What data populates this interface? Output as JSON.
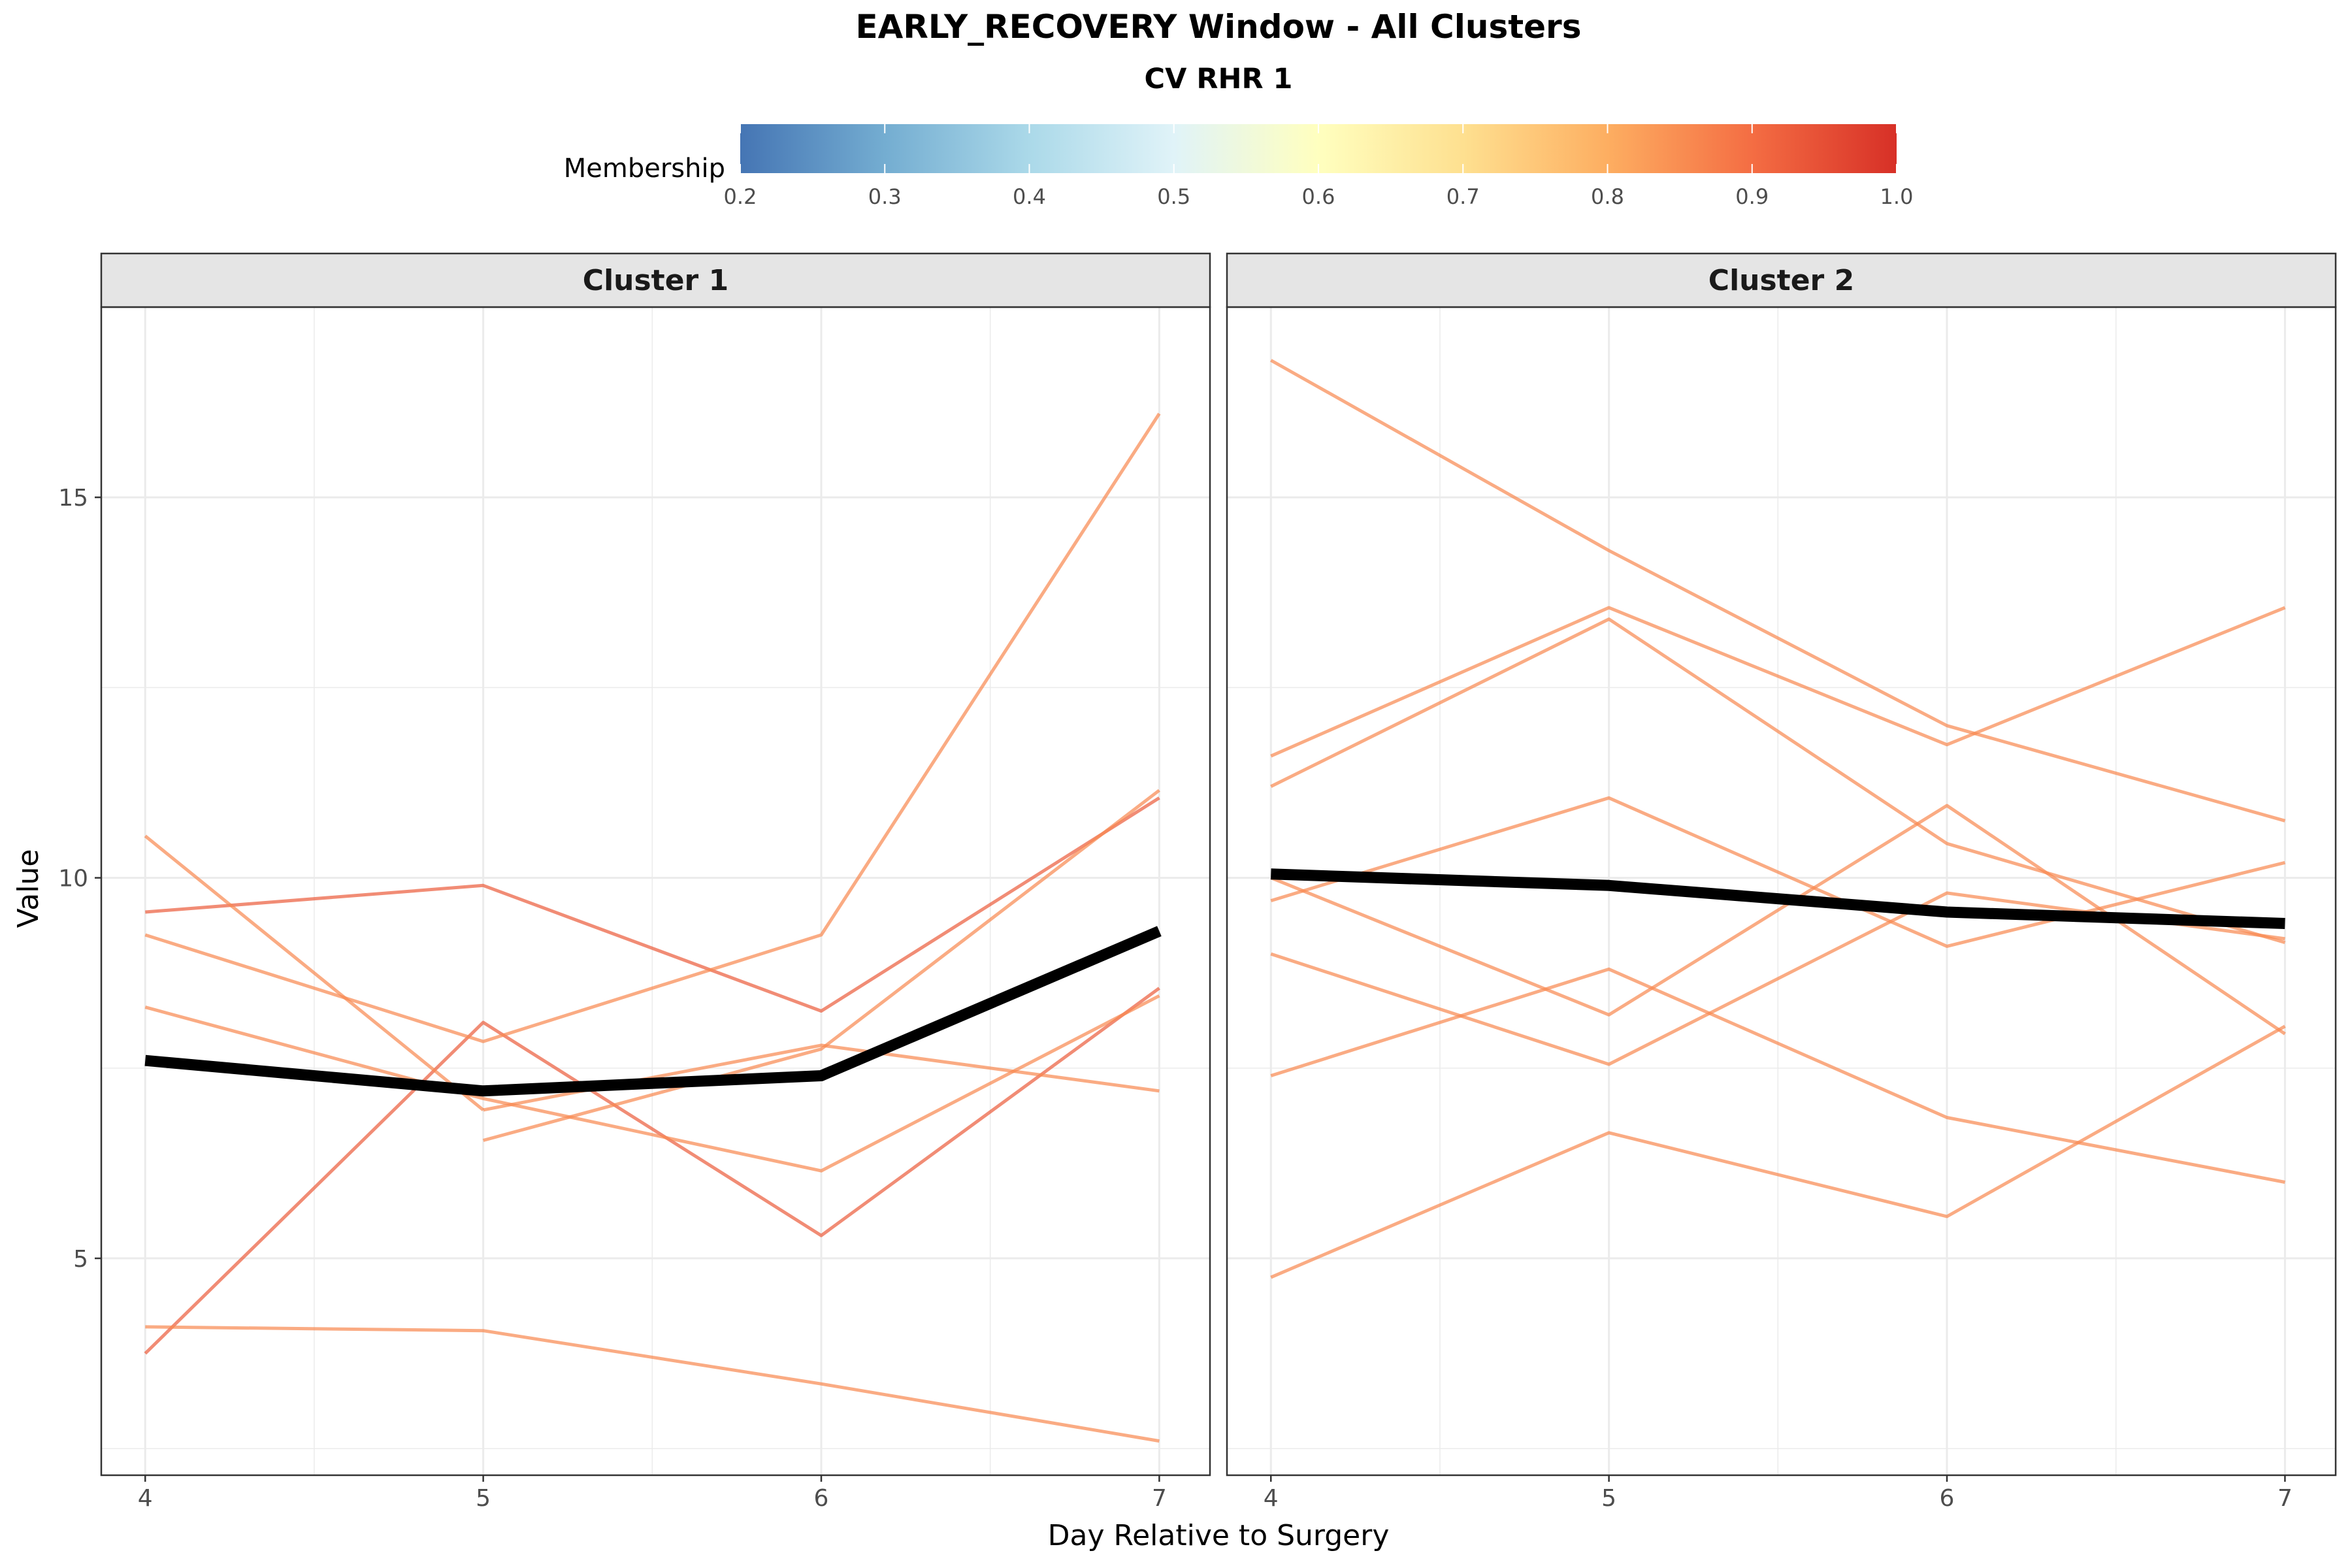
{
  "chart_data": {
    "type": "line",
    "title": "EARLY_RECOVERY Window - All Clusters",
    "subtitle": "CV RHR 1",
    "xlabel": "Day Relative to Surgery",
    "ylabel": "Value",
    "x": [
      4,
      5,
      6,
      7
    ],
    "xlim": [
      3.87,
      7.15
    ],
    "ylim": [
      2.15,
      17.5
    ],
    "y_ticks": [
      5,
      10,
      15
    ],
    "grid": true,
    "legend": {
      "title": "Membership",
      "placement": "top",
      "ticks": [
        0.2,
        0.3,
        0.4,
        0.5,
        0.6,
        0.7,
        0.8,
        0.9,
        1.0
      ],
      "tick_labels": [
        "0.2",
        "0.3",
        "0.4",
        "0.5",
        "0.6",
        "0.7",
        "0.8",
        "0.9",
        "1.0"
      ],
      "range": [
        0.2,
        1.0
      ],
      "stops": [
        {
          "value": 0.2,
          "color": "#4575b4"
        },
        {
          "value": 0.3,
          "color": "#74add1"
        },
        {
          "value": 0.4,
          "color": "#abd9e9"
        },
        {
          "value": 0.5,
          "color": "#e0f3f8"
        },
        {
          "value": 0.6,
          "color": "#ffffbf"
        },
        {
          "value": 0.7,
          "color": "#fee090"
        },
        {
          "value": 0.8,
          "color": "#fdae61"
        },
        {
          "value": 0.9,
          "color": "#f46d43"
        },
        {
          "value": 1.0,
          "color": "#d73027"
        }
      ]
    },
    "mean_line_color": "#000000",
    "panels": [
      {
        "label": "Cluster 1",
        "lines": [
          {
            "x": [
              4,
              5,
              6,
              7
            ],
            "y": [
              9.55,
              9.9,
              8.25,
              11.05
            ],
            "membership": 0.93
          },
          {
            "x": [
              4,
              5,
              6,
              7
            ],
            "y": [
              3.75,
              8.1,
              5.3,
              8.55
            ],
            "membership": 0.93
          },
          {
            "x": [
              4,
              5
            ],
            "y": [
              10.55,
              6.95
            ],
            "membership": 0.86
          },
          {
            "x": [
              5,
              6,
              7
            ],
            "y": [
              6.95,
              7.8,
              7.2
            ],
            "membership": 0.86
          },
          {
            "x": [
              4,
              5,
              6,
              7
            ],
            "y": [
              9.25,
              7.85,
              9.25,
              16.1
            ],
            "membership": 0.86
          },
          {
            "x": [
              4,
              5,
              6,
              7
            ],
            "y": [
              8.3,
              7.1,
              6.15,
              8.45
            ],
            "membership": 0.86
          },
          {
            "x": [
              5,
              6,
              7
            ],
            "y": [
              6.55,
              7.75,
              11.15
            ],
            "membership": 0.86
          },
          {
            "x": [
              4,
              5,
              6,
              7
            ],
            "y": [
              4.1,
              4.05,
              3.35,
              2.6
            ],
            "membership": 0.86
          }
        ],
        "mean": {
          "x": [
            4,
            5,
            6,
            7
          ],
          "y": [
            7.6,
            7.2,
            7.4,
            9.3
          ]
        }
      },
      {
        "label": "Cluster 2",
        "lines": [
          {
            "x": [
              4,
              5,
              6,
              7
            ],
            "y": [
              16.8,
              14.3,
              12.0,
              10.75
            ],
            "membership": 0.86
          },
          {
            "x": [
              4,
              5,
              6,
              7
            ],
            "y": [
              11.6,
              13.55,
              11.75,
              13.55
            ],
            "membership": 0.86
          },
          {
            "x": [
              4,
              5,
              6,
              7
            ],
            "y": [
              11.2,
              13.4,
              10.45,
              9.15
            ],
            "membership": 0.86
          },
          {
            "x": [
              4,
              5,
              6,
              7
            ],
            "y": [
              9.7,
              11.05,
              9.1,
              10.2
            ],
            "membership": 0.86
          },
          {
            "x": [
              4,
              5,
              6,
              7
            ],
            "y": [
              10.0,
              8.2,
              10.95,
              7.95
            ],
            "membership": 0.86
          },
          {
            "x": [
              4,
              5,
              6,
              7
            ],
            "y": [
              9.0,
              7.55,
              9.8,
              9.2
            ],
            "membership": 0.86
          },
          {
            "x": [
              4,
              5,
              6,
              7
            ],
            "y": [
              7.4,
              8.8,
              6.85,
              6.0
            ],
            "membership": 0.86
          },
          {
            "x": [
              4,
              5,
              6,
              7
            ],
            "y": [
              4.75,
              6.65,
              5.55,
              8.05
            ],
            "membership": 0.86
          }
        ],
        "mean": {
          "x": [
            4,
            5,
            6,
            7
          ],
          "y": [
            10.05,
            9.9,
            9.55,
            9.4
          ]
        }
      }
    ]
  }
}
